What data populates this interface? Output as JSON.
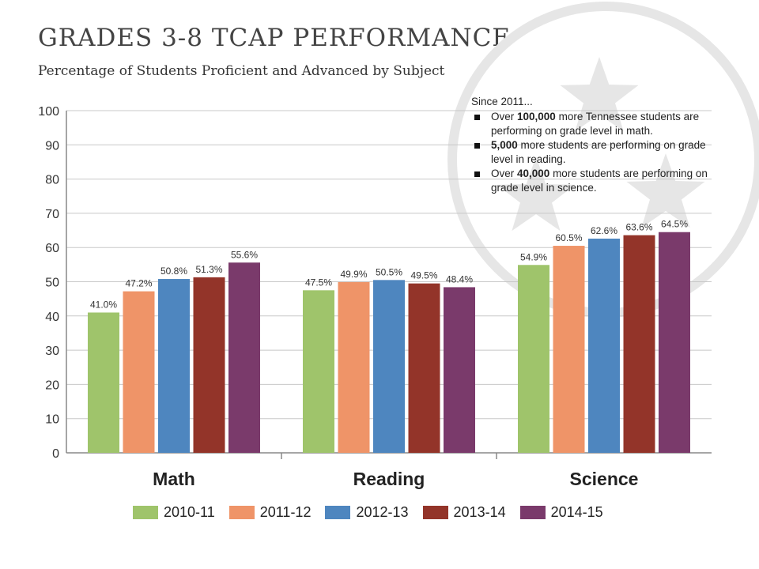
{
  "header": {
    "title": "GRADES 3-8 TCAP PERFORMANCE",
    "subtitle": "Percentage of Students Proficient and Advanced by Subject"
  },
  "callout": {
    "intro": "Since 2011...",
    "bullets": [
      {
        "pre": "Over ",
        "bold": "100,000",
        "post": " more Tennessee students are performing on grade level in math."
      },
      {
        "pre": "",
        "bold": "5,000",
        "post": " more students are performing on grade level in reading."
      },
      {
        "pre": "Over ",
        "bold": "40,000",
        "post": " more students are performing on grade level in science."
      }
    ]
  },
  "colors": {
    "2010-11": "#9fc46b",
    "2011-12": "#ef9468",
    "2012-13": "#4e86bf",
    "2013-14": "#933429",
    "2014-15": "#7a3a6b",
    "grid": "#c8c8c8",
    "axis": "#888888",
    "star_emblem": "#e6e6e6"
  },
  "chart_data": {
    "type": "bar",
    "title": "GRADES 3-8 TCAP PERFORMANCE",
    "subtitle": "Percentage of Students Proficient and Advanced by Subject",
    "categories": [
      "Math",
      "Reading",
      "Science"
    ],
    "series": [
      {
        "name": "2010-11",
        "values": [
          41.0,
          47.5,
          54.9
        ],
        "labels": [
          "41.0%",
          "47.5%",
          "54.9%"
        ]
      },
      {
        "name": "2011-12",
        "values": [
          47.2,
          49.9,
          60.5
        ],
        "labels": [
          "47.2%",
          "49.9%",
          "60.5%"
        ]
      },
      {
        "name": "2012-13",
        "values": [
          50.8,
          50.5,
          62.6
        ],
        "labels": [
          "50.8%",
          "50.5%",
          "62.6%"
        ]
      },
      {
        "name": "2013-14",
        "values": [
          51.3,
          49.5,
          63.6
        ],
        "labels": [
          "51.3%",
          "49.5%",
          "63.6%"
        ]
      },
      {
        "name": "2014-15",
        "values": [
          55.6,
          48.4,
          64.5
        ],
        "labels": [
          "55.6%",
          "48.4%",
          "64.5%"
        ]
      }
    ],
    "yticks": [
      "0",
      "10",
      "20",
      "30",
      "40",
      "50",
      "60",
      "70",
      "80",
      "90",
      "100"
    ],
    "ylim": [
      0,
      100
    ],
    "grid": true,
    "legend": "bottom"
  }
}
